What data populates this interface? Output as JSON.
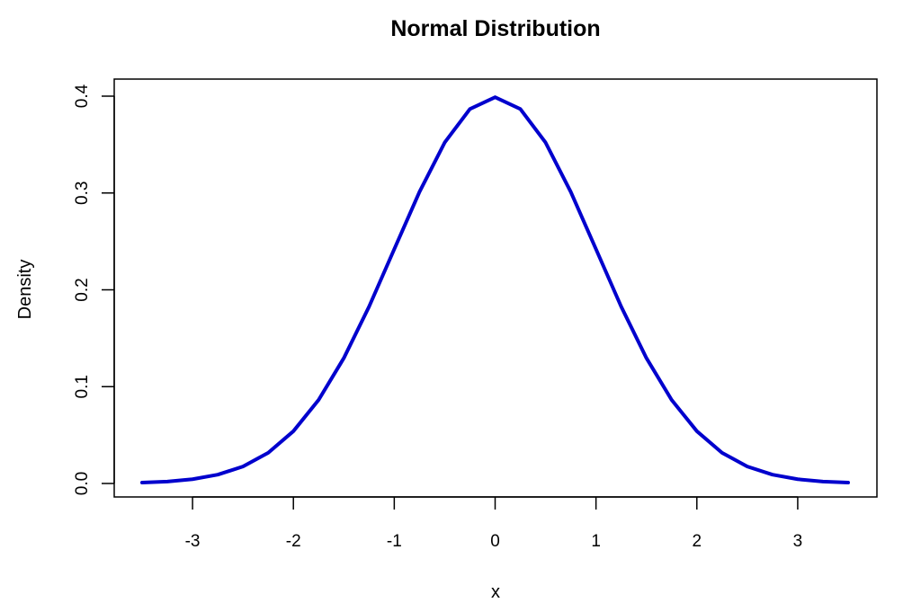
{
  "chart_data": {
    "type": "line",
    "title": "Normal Distribution",
    "xlabel": "x",
    "ylabel": "Density",
    "xlim": [
      -3.5,
      3.5
    ],
    "ylim": [
      0,
      0.4
    ],
    "x_ticks": [
      "-3",
      "-2",
      "-1",
      "0",
      "1",
      "2",
      "3"
    ],
    "y_ticks": [
      "0.0",
      "0.1",
      "0.2",
      "0.3",
      "0.4"
    ],
    "grid": false,
    "legend": "none",
    "series": [
      {
        "color": "#0000cd",
        "x": [
          -3.5,
          -3.25,
          -3.0,
          -2.75,
          -2.5,
          -2.25,
          -2.0,
          -1.75,
          -1.5,
          -1.25,
          -1.0,
          -0.75,
          -0.5,
          -0.25,
          0.0,
          0.25,
          0.5,
          0.75,
          1.0,
          1.25,
          1.5,
          1.75,
          2.0,
          2.25,
          2.5,
          2.75,
          3.0,
          3.25,
          3.5
        ],
        "y": [
          0.0009,
          0.002,
          0.0044,
          0.0091,
          0.0175,
          0.0317,
          0.054,
          0.0863,
          0.1295,
          0.1826,
          0.242,
          0.3011,
          0.3521,
          0.3867,
          0.3989,
          0.3867,
          0.3521,
          0.3011,
          0.242,
          0.1826,
          0.1295,
          0.0863,
          0.054,
          0.0317,
          0.0175,
          0.0091,
          0.0044,
          0.002,
          0.0009
        ]
      }
    ]
  }
}
